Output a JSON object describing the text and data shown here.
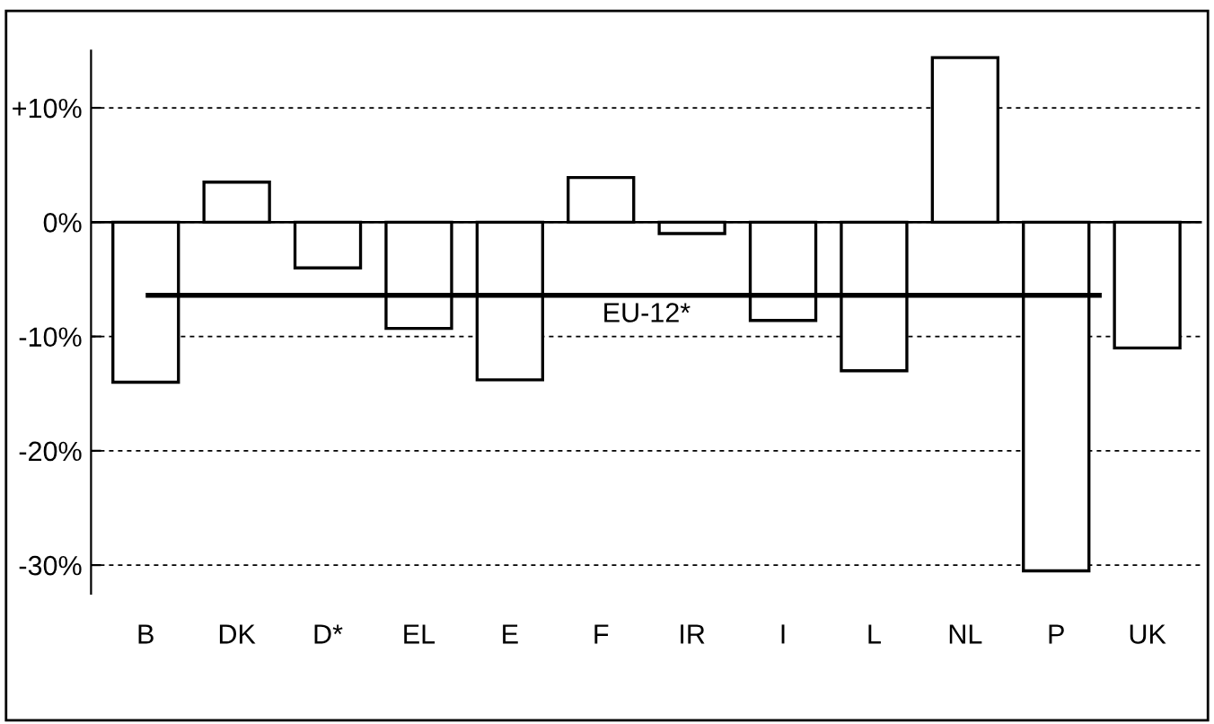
{
  "chart_data": {
    "type": "bar",
    "categories": [
      "B",
      "DK",
      "D*",
      "EL",
      "E",
      "F",
      "IR",
      "I",
      "L",
      "NL",
      "P",
      "UK"
    ],
    "series": [
      {
        "color": "#ffffff",
        "values": [
          -14.0,
          3.5,
          -4.0,
          -9.3,
          -13.8,
          3.9,
          -1.0,
          -8.6,
          -13.0,
          14.4,
          -30.5,
          -11.0
        ]
      }
    ],
    "ylim": [
      -32.5,
      15
    ],
    "yticks": [
      {
        "value": 10,
        "label": "+10%"
      },
      {
        "value": 0,
        "label": "0%"
      },
      {
        "value": -10,
        "label": "-10%"
      },
      {
        "value": -20,
        "label": "-20%"
      },
      {
        "value": -30,
        "label": "-30%"
      }
    ],
    "grid": "y",
    "ref_lines": [
      {
        "axis": "y",
        "value": -6.4,
        "label": "EU-12*",
        "color": "#000000"
      }
    ]
  }
}
